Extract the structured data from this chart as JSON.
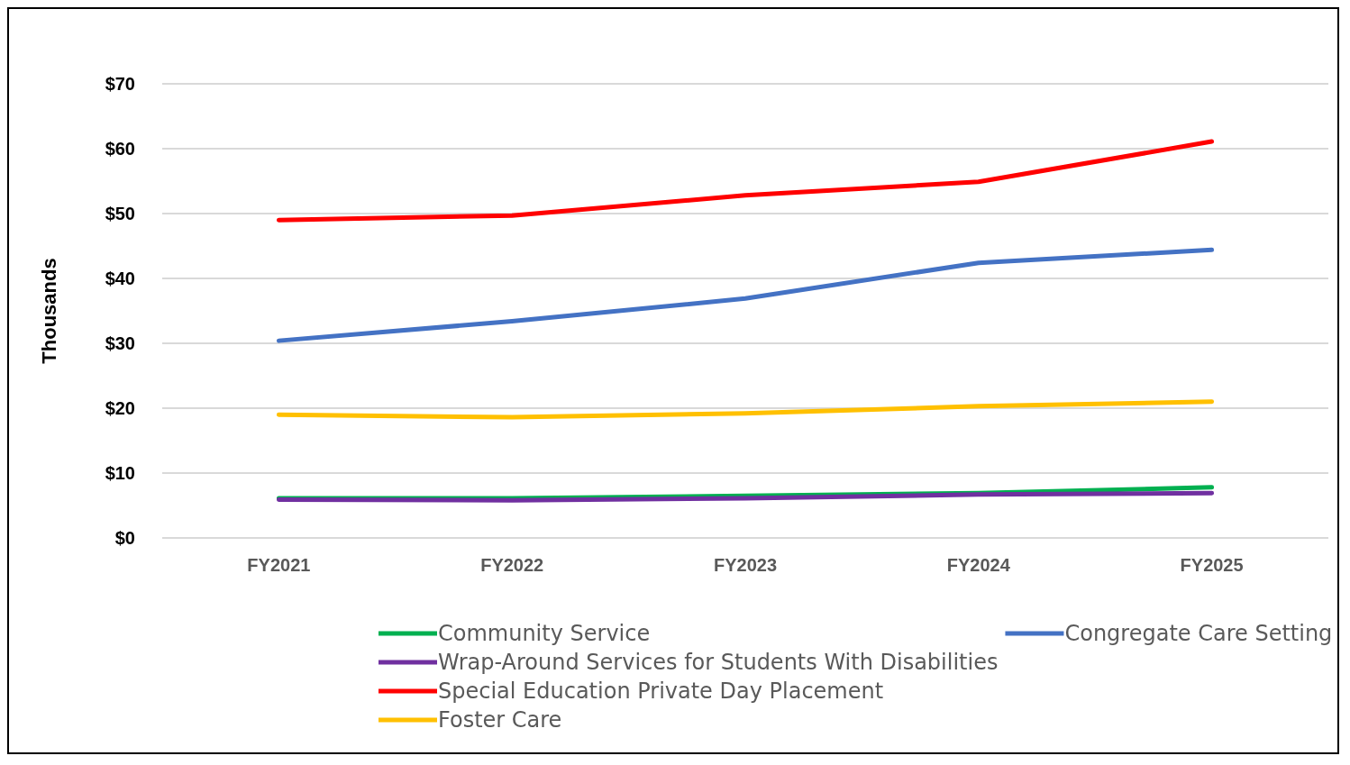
{
  "chart_data": {
    "type": "line",
    "ylabel": "Thousands",
    "categories": [
      "FY2021",
      "FY2022",
      "FY2023",
      "FY2024",
      "FY2025"
    ],
    "series": [
      {
        "name": "Community Service",
        "color": "#00b050",
        "values": [
          6.1,
          6.1,
          6.5,
          6.9,
          7.8
        ]
      },
      {
        "name": "Wrap-Around Services for Students With Disabilities",
        "color": "#7030a0",
        "values": [
          5.9,
          5.8,
          6.1,
          6.7,
          6.9
        ]
      },
      {
        "name": "Special Education Private Day Placement",
        "color": "#ff0000",
        "values": [
          49.0,
          49.7,
          52.8,
          54.9,
          61.1
        ]
      },
      {
        "name": "Foster Care",
        "color": "#ffc000",
        "values": [
          19.0,
          18.6,
          19.2,
          20.3,
          21.0
        ]
      },
      {
        "name": "Congregate Care Setting",
        "color": "#4472c4",
        "values": [
          30.4,
          33.4,
          36.9,
          42.4,
          44.4
        ]
      }
    ],
    "ylim": [
      0,
      70
    ],
    "yticks": [
      {
        "value": 0,
        "label": "$0"
      },
      {
        "value": 10,
        "label": "$10"
      },
      {
        "value": 20,
        "label": "$20"
      },
      {
        "value": 30,
        "label": "$30"
      },
      {
        "value": 40,
        "label": "$40"
      },
      {
        "value": 50,
        "label": "$50"
      },
      {
        "value": 60,
        "label": "$60"
      },
      {
        "value": 70,
        "label": "$70"
      }
    ],
    "grid": "y",
    "legend": "bottom",
    "marker": "none",
    "line_style": "solid"
  }
}
